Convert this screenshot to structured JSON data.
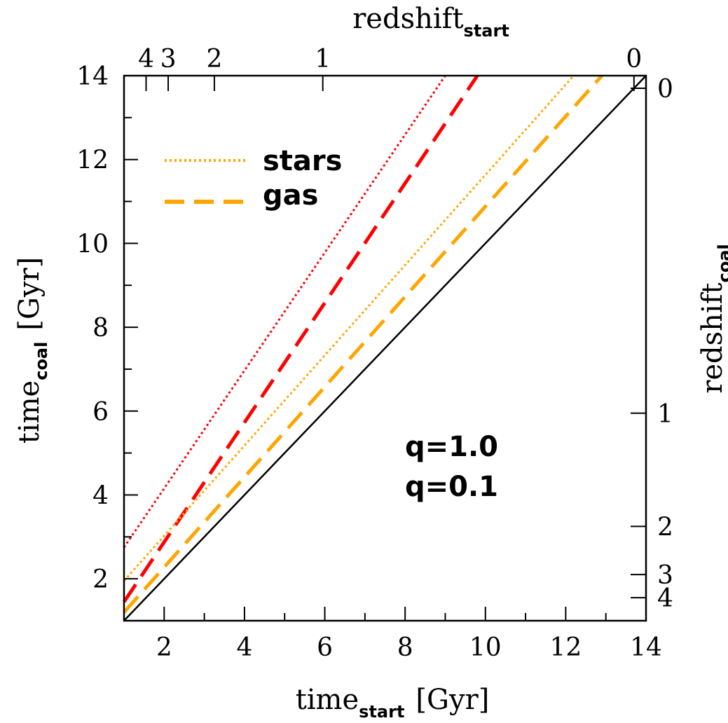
{
  "chart_data": {
    "type": "line",
    "xlabel": "time",
    "xlabel_sub": "start",
    "xlabel_unit": "[Gyr]",
    "ylabel": "time",
    "ylabel_sub": "coal",
    "ylabel_unit": "[Gyr]",
    "top_label": "redshift",
    "top_label_sub": "start",
    "right_label": "redshift",
    "right_label_sub": "coal",
    "xlim": [
      1.0,
      14.0
    ],
    "ylim": [
      1.0,
      14.0
    ],
    "x_ticks": [
      2,
      4,
      6,
      8,
      10,
      12,
      14
    ],
    "y_ticks": [
      2,
      4,
      6,
      8,
      10,
      12,
      14
    ],
    "top_ticks": [
      {
        "label": "4",
        "t": 1.55
      },
      {
        "label": "3",
        "t": 2.1
      },
      {
        "label": "2",
        "t": 3.25
      },
      {
        "label": "1",
        "t": 5.95
      },
      {
        "label": "0",
        "t": 13.7
      }
    ],
    "right_ticks": [
      {
        "label": "0",
        "t": 13.7
      },
      {
        "label": "1",
        "t": 5.95
      },
      {
        "label": "2",
        "t": 3.25
      },
      {
        "label": "3",
        "t": 2.1
      },
      {
        "label": "4",
        "t": 1.55
      }
    ],
    "series": [
      {
        "color": "#000000",
        "style": "solid",
        "x": [
          1.0,
          14.0
        ],
        "y": [
          1.0,
          14.0
        ]
      },
      {
        "color": "#ff0000",
        "style": "dotted",
        "x": [
          1.0,
          9.0
        ],
        "y": [
          2.75,
          14.0
        ]
      },
      {
        "color": "#ff0000",
        "style": "dashed",
        "x": [
          1.0,
          9.8
        ],
        "y": [
          1.45,
          14.0
        ]
      },
      {
        "color": "#ffa500",
        "style": "dotted",
        "x": [
          1.0,
          12.2
        ],
        "y": [
          1.95,
          14.0
        ]
      },
      {
        "color": "#ffa500",
        "style": "dashed",
        "x": [
          1.0,
          12.9
        ],
        "y": [
          1.2,
          14.0
        ]
      }
    ],
    "legend": [
      {
        "label": "stars",
        "style": "dotted",
        "color": "#ffa500"
      },
      {
        "label": "gas",
        "style": "dashed",
        "color": "#ffa500"
      }
    ],
    "annotations": [
      {
        "text": "q=1.0",
        "color": "#ffa500"
      },
      {
        "text": "q=0.1",
        "color": "#ff0000"
      }
    ],
    "colors": {
      "stars_gas_legend": "#ffa500",
      "q_high": "#ffa500",
      "q_low": "#ff0000",
      "diagonal": "#000000"
    },
    "grid": false
  }
}
